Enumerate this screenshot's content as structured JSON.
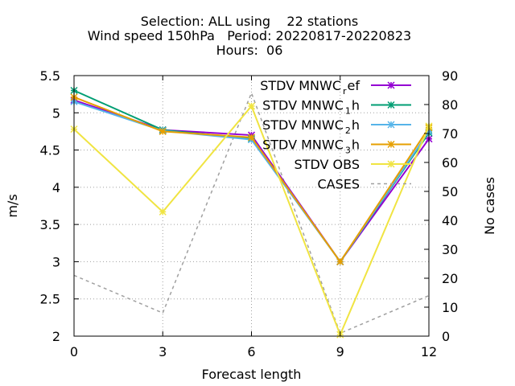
{
  "chart_data": {
    "type": "line",
    "title_lines": [
      "Selection: ALL using    22 stations",
      "Wind speed 150hPa   Period: 20220817-20220823",
      "Hours:  06"
    ],
    "xlabel": "Forecast length",
    "ylabel": "m/s",
    "y2label": "No cases",
    "x": [
      0,
      3,
      6,
      9,
      12
    ],
    "xlim": [
      0,
      12
    ],
    "ylim": [
      2,
      5.5
    ],
    "y2lim": [
      0,
      90
    ],
    "x_ticks": [
      "0",
      "3",
      "6",
      "9",
      "12"
    ],
    "y_ticks": [
      "2",
      "2.5",
      "3",
      "3.5",
      "4",
      "4.5",
      "5",
      "5.5"
    ],
    "y2_ticks": [
      "0",
      "10",
      "20",
      "30",
      "40",
      "50",
      "60",
      "70",
      "80",
      "90"
    ],
    "grid": true,
    "legend_position": "top-right",
    "series": [
      {
        "name": "STDV MNWC_ref",
        "label_main": "STDV MNWC",
        "label_sub": "r",
        "label_tail": "ef",
        "color": "#9400d3",
        "marker": "x",
        "axis": "y",
        "values": [
          5.17,
          4.77,
          4.7,
          3.0,
          4.65
        ]
      },
      {
        "name": "STDV MNWC_1h",
        "label_main": "STDV MNWC",
        "label_sub": "1",
        "label_tail": "h",
        "color": "#009e73",
        "marker": "x",
        "axis": "y",
        "values": [
          5.3,
          4.77,
          4.65,
          3.0,
          4.73
        ]
      },
      {
        "name": "STDV MNWC_2h",
        "label_main": "STDV MNWC",
        "label_sub": "2",
        "label_tail": "h",
        "color": "#56b4e9",
        "marker": "x",
        "axis": "y",
        "values": [
          5.15,
          4.76,
          4.64,
          3.0,
          4.75
        ]
      },
      {
        "name": "STDV MNWC_3h",
        "label_main": "STDV MNWC",
        "label_sub": "3",
        "label_tail": "h",
        "color": "#e69f00",
        "marker": "x",
        "axis": "y",
        "values": [
          5.21,
          4.75,
          4.67,
          3.0,
          4.8
        ]
      },
      {
        "name": "STDV OBS",
        "label_main": "STDV OBS",
        "label_sub": "",
        "label_tail": "",
        "color": "#f0e442",
        "marker": "x",
        "axis": "y",
        "values": [
          4.78,
          3.67,
          5.09,
          2.02,
          4.82
        ]
      },
      {
        "name": "CASES",
        "label_main": "CASES",
        "label_sub": "",
        "label_tail": "",
        "color": "#a0a0a0",
        "marker": "none",
        "dashed": true,
        "axis": "y2",
        "values": [
          21,
          8,
          84,
          1,
          14
        ]
      }
    ]
  }
}
